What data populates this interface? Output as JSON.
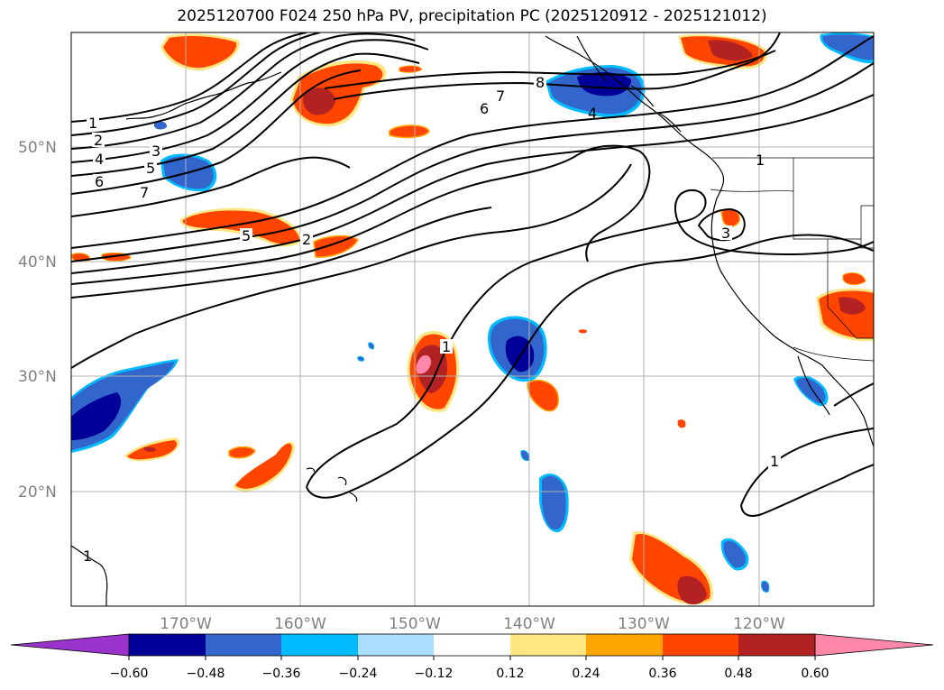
{
  "title": "2025120700 F024 250 hPa PV, precipitation PC (2025120912 - 2025121012)",
  "map": {
    "projection": "PlateCarree",
    "lon_range": [
      -180,
      -110
    ],
    "lat_range": [
      10,
      60
    ],
    "longitude_labels": [
      "170°W",
      "160°W",
      "150°W",
      "140°W",
      "130°W",
      "120°W"
    ],
    "latitude_labels": [
      "50°N",
      "40°N",
      "30°N",
      "20°N"
    ],
    "pv_contour_labels": [
      "1",
      "2",
      "3",
      "4",
      "5",
      "6",
      "7",
      "8"
    ],
    "inline_contour_labels": [
      "1",
      "2",
      "3",
      "4",
      "5",
      "6",
      "7",
      "8",
      "6",
      "7",
      "4",
      "5",
      "2",
      "3",
      "1",
      "1",
      "1"
    ]
  },
  "colorbar": {
    "ticks": [
      "−0.60",
      "−0.48",
      "−0.36",
      "−0.24",
      "−0.12",
      "0.12",
      "0.24",
      "0.36",
      "0.48",
      "0.60"
    ],
    "colors": [
      "#9933cc",
      "#000099",
      "#3366cc",
      "#00bbff",
      "#aaddff",
      "#ffffff",
      "#ffe680",
      "#ffa500",
      "#ff4500",
      "#b22222",
      "#ff88aa"
    ]
  },
  "colors": {
    "gridline": "#b0b0b0",
    "contour": "#000000",
    "tick_text": "#808080"
  }
}
